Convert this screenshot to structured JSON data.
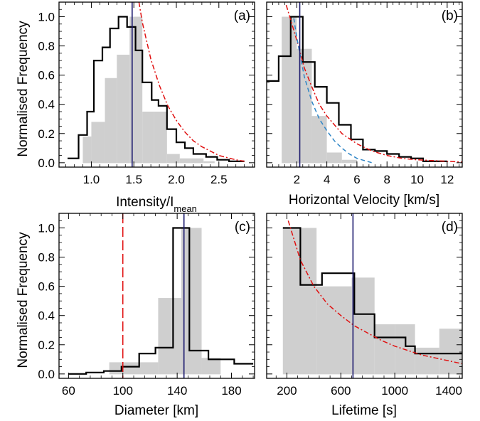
{
  "figure": {
    "ylabel": "Normalised Frequency"
  },
  "chart_data": [
    {
      "type": "bar",
      "panel_label": "(a)",
      "xlabel_main": "Intensity/I",
      "xlabel_sub": "mean",
      "ylabel": "Normalised Frequency",
      "xlim": [
        0.62,
        2.92
      ],
      "ylim": [
        -0.03,
        1.1
      ],
      "xticks": [
        1.0,
        1.5,
        2.0,
        2.5
      ],
      "xtick_labels": [
        "1.0",
        "1.5",
        "2.0",
        "2.5"
      ],
      "yticks": [
        0.0,
        0.2,
        0.4,
        0.6,
        0.8,
        1.0
      ],
      "ytick_labels": [
        "0.0",
        "0.2",
        "0.4",
        "0.6",
        "0.8",
        "1.0"
      ],
      "grey_hist": {
        "edges": [
          0.9,
          1.0,
          1.16,
          1.3,
          1.45,
          1.6,
          1.74,
          1.89,
          2.04,
          2.17,
          2.32,
          2.45
        ],
        "values": [
          0.18,
          0.28,
          0.58,
          0.74,
          1.0,
          0.35,
          0.35,
          0.06,
          0.03,
          0.03,
          0.01
        ]
      },
      "black_hist": {
        "edges": [
          0.72,
          0.85,
          0.95,
          1.03,
          1.13,
          1.22,
          1.32,
          1.42,
          1.52,
          1.6,
          1.71,
          1.79,
          1.89,
          2.0,
          2.1,
          2.2,
          2.35,
          2.48,
          2.62,
          2.8
        ],
        "values": [
          0.03,
          0.19,
          0.35,
          0.7,
          0.79,
          0.92,
          1.0,
          0.93,
          0.77,
          0.55,
          0.43,
          0.39,
          0.23,
          0.14,
          0.1,
          0.06,
          0.04,
          0.02,
          0.01
        ]
      },
      "vline": 1.48,
      "fit_curve": {
        "style": "dash-dot",
        "color": "#e01010",
        "x": [
          1.56,
          1.6,
          1.7,
          1.8,
          1.9,
          2.0,
          2.1,
          2.2,
          2.3,
          2.4,
          2.5,
          2.6,
          2.7,
          2.8
        ],
        "y": [
          1.1,
          0.96,
          0.71,
          0.53,
          0.39,
          0.29,
          0.21,
          0.15,
          0.11,
          0.08,
          0.05,
          0.035,
          0.02,
          0.01
        ]
      }
    },
    {
      "type": "bar",
      "panel_label": "(b)",
      "xlabel": "Horizontal Velocity [km/s]",
      "xlim": [
        0.0,
        13.0
      ],
      "ylim": [
        -0.03,
        1.1
      ],
      "xticks": [
        2,
        4,
        6,
        8,
        10,
        12
      ],
      "xtick_labels": [
        "2",
        "4",
        "6",
        "8",
        "10",
        "12"
      ],
      "yticks": [
        0.0,
        0.2,
        0.4,
        0.6,
        0.8,
        1.0
      ],
      "grey_hist": {
        "edges": [
          1.0,
          2.0,
          3.0,
          4.0,
          5.0,
          6.0
        ],
        "values": [
          1.0,
          0.78,
          0.32,
          0.07,
          0.02
        ]
      },
      "black_hist": {
        "edges": [
          0.0,
          0.8,
          1.6,
          2.4,
          3.2,
          4.0,
          4.8,
          5.6,
          6.4,
          7.2,
          8.0,
          8.8,
          9.6,
          10.4,
          11.2,
          12.0
        ],
        "values": [
          0.56,
          0.73,
          1.0,
          0.69,
          0.52,
          0.41,
          0.26,
          0.16,
          0.09,
          0.08,
          0.06,
          0.04,
          0.03,
          0.01,
          0.01
        ]
      },
      "vline": 2.2,
      "fit_curves": [
        {
          "style": "dash-dot",
          "color": "#e01010",
          "x": [
            1.3,
            2.0,
            2.5,
            3.0,
            3.5,
            4.0,
            5.0,
            6.0,
            7.0,
            8.0,
            9.0,
            10.0,
            11.0,
            12.0,
            13.0
          ],
          "y": [
            1.08,
            0.84,
            0.65,
            0.52,
            0.4,
            0.32,
            0.2,
            0.13,
            0.08,
            0.05,
            0.03,
            0.02,
            0.015,
            0.01,
            0.005
          ]
        },
        {
          "style": "dashed",
          "color": "#2f86c7",
          "x": [
            1.8,
            2.0,
            2.5,
            3.0,
            3.5,
            4.0,
            4.5,
            5.0,
            5.5,
            6.0,
            6.5,
            7.0
          ],
          "y": [
            0.99,
            0.86,
            0.59,
            0.42,
            0.3,
            0.22,
            0.15,
            0.1,
            0.06,
            0.03,
            0.015,
            0.0
          ]
        }
      ]
    },
    {
      "type": "bar",
      "panel_label": "(c)",
      "xlabel": "Diameter [km]",
      "xlim": [
        53,
        197
      ],
      "ylim": [
        -0.03,
        1.1
      ],
      "xticks": [
        60,
        100,
        140,
        180
      ],
      "xtick_labels": [
        "60",
        "100",
        "140",
        "180"
      ],
      "yticks": [
        0.0,
        0.2,
        0.4,
        0.6,
        0.8,
        1.0
      ],
      "ytick_labels": [
        "0.0",
        "0.2",
        "0.4",
        "0.6",
        "0.8",
        "1.0"
      ],
      "grey_hist": {
        "edges": [
          90,
          108,
          126,
          143,
          158,
          172
        ],
        "values": [
          0.08,
          0.08,
          0.52,
          1.0,
          0.11
        ]
      },
      "black_hist": {
        "edges": [
          60,
          73,
          86,
          99,
          112,
          124,
          137,
          149,
          163,
          182,
          196
        ],
        "values": [
          0.0,
          0.01,
          0.02,
          0.05,
          0.14,
          0.18,
          1.0,
          0.16,
          0.1,
          0.07
        ]
      },
      "vline": 145,
      "reference_line": {
        "x": 100,
        "style": "long-dash",
        "color": "#e01010"
      }
    },
    {
      "type": "bar",
      "panel_label": "(d)",
      "xlabel": "Lifetime [s]",
      "xlim": [
        50,
        1500
      ],
      "ylim": [
        -0.03,
        1.1
      ],
      "xticks": [
        200,
        600,
        1000,
        1400
      ],
      "xtick_labels": [
        "200",
        "600",
        "1000",
        "1400"
      ],
      "yticks": [
        0.0,
        0.2,
        0.4,
        0.6,
        0.8,
        1.0
      ],
      "grey_hist": {
        "edges": [
          170,
          420,
          680,
          850,
          1000,
          1150,
          1330,
          1500
        ],
        "values": [
          1.0,
          0.6,
          0.66,
          0.34,
          0.34,
          0.18,
          0.31
        ]
      },
      "black_hist": {
        "edges": [
          170,
          300,
          460,
          700,
          850,
          1080,
          1150,
          1500
        ],
        "values": [
          1.0,
          0.61,
          0.69,
          0.41,
          0.25,
          0.19,
          0.14
        ]
      },
      "vline": 690,
      "fit_curve": {
        "style": "dash-dot",
        "color": "#e01010",
        "x": [
          210,
          300,
          400,
          500,
          600,
          700,
          800,
          900,
          1000,
          1100,
          1200,
          1300,
          1400,
          1500
        ],
        "y": [
          1.05,
          0.78,
          0.6,
          0.48,
          0.4,
          0.33,
          0.28,
          0.23,
          0.19,
          0.16,
          0.13,
          0.11,
          0.09,
          0.07
        ]
      }
    }
  ]
}
